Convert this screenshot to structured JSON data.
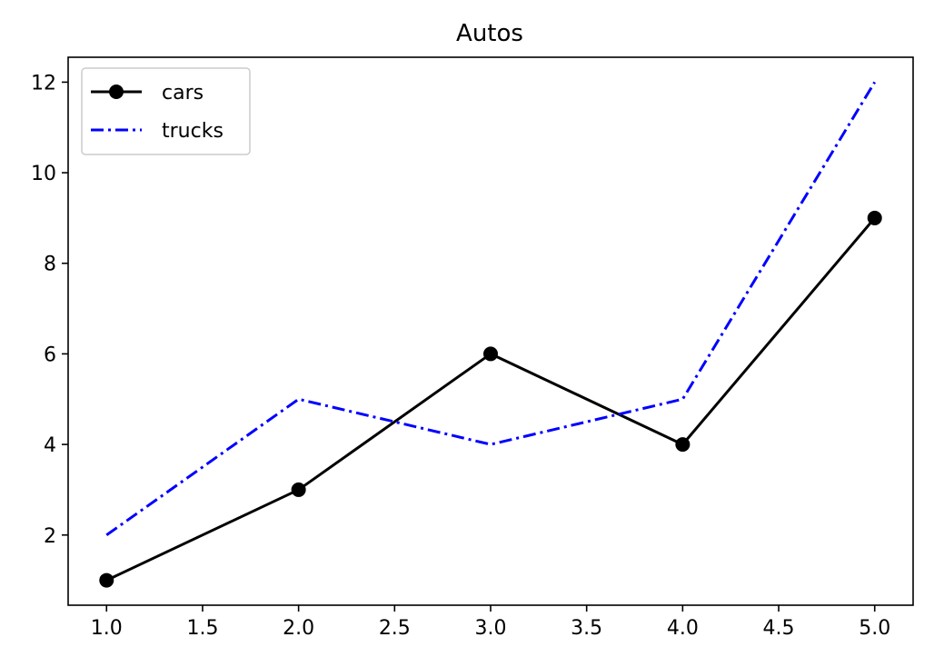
{
  "chart_data": {
    "type": "line",
    "title": "Autos",
    "xlabel": "",
    "ylabel": "",
    "xlim": [
      0.8,
      5.2
    ],
    "ylim": [
      0.45,
      12.55
    ],
    "xticks": [
      1.0,
      1.5,
      2.0,
      2.5,
      3.0,
      3.5,
      4.0,
      4.5,
      5.0
    ],
    "xtick_labels": [
      "1.0",
      "1.5",
      "2.0",
      "2.5",
      "3.0",
      "3.5",
      "4.0",
      "4.5",
      "5.0"
    ],
    "yticks": [
      2,
      4,
      6,
      8,
      10,
      12
    ],
    "ytick_labels": [
      "2",
      "4",
      "6",
      "8",
      "10",
      "12"
    ],
    "grid": false,
    "legend_position": "top-left",
    "x": [
      1,
      2,
      3,
      4,
      5
    ],
    "series": [
      {
        "name": "cars",
        "values": [
          1,
          3,
          6,
          4,
          9
        ],
        "color": "#000000",
        "line_style": "solid",
        "marker": "circle"
      },
      {
        "name": "trucks",
        "values": [
          2,
          5,
          4,
          5,
          12
        ],
        "color": "#0000ff",
        "line_style": "dashdot",
        "marker": "none"
      }
    ]
  }
}
